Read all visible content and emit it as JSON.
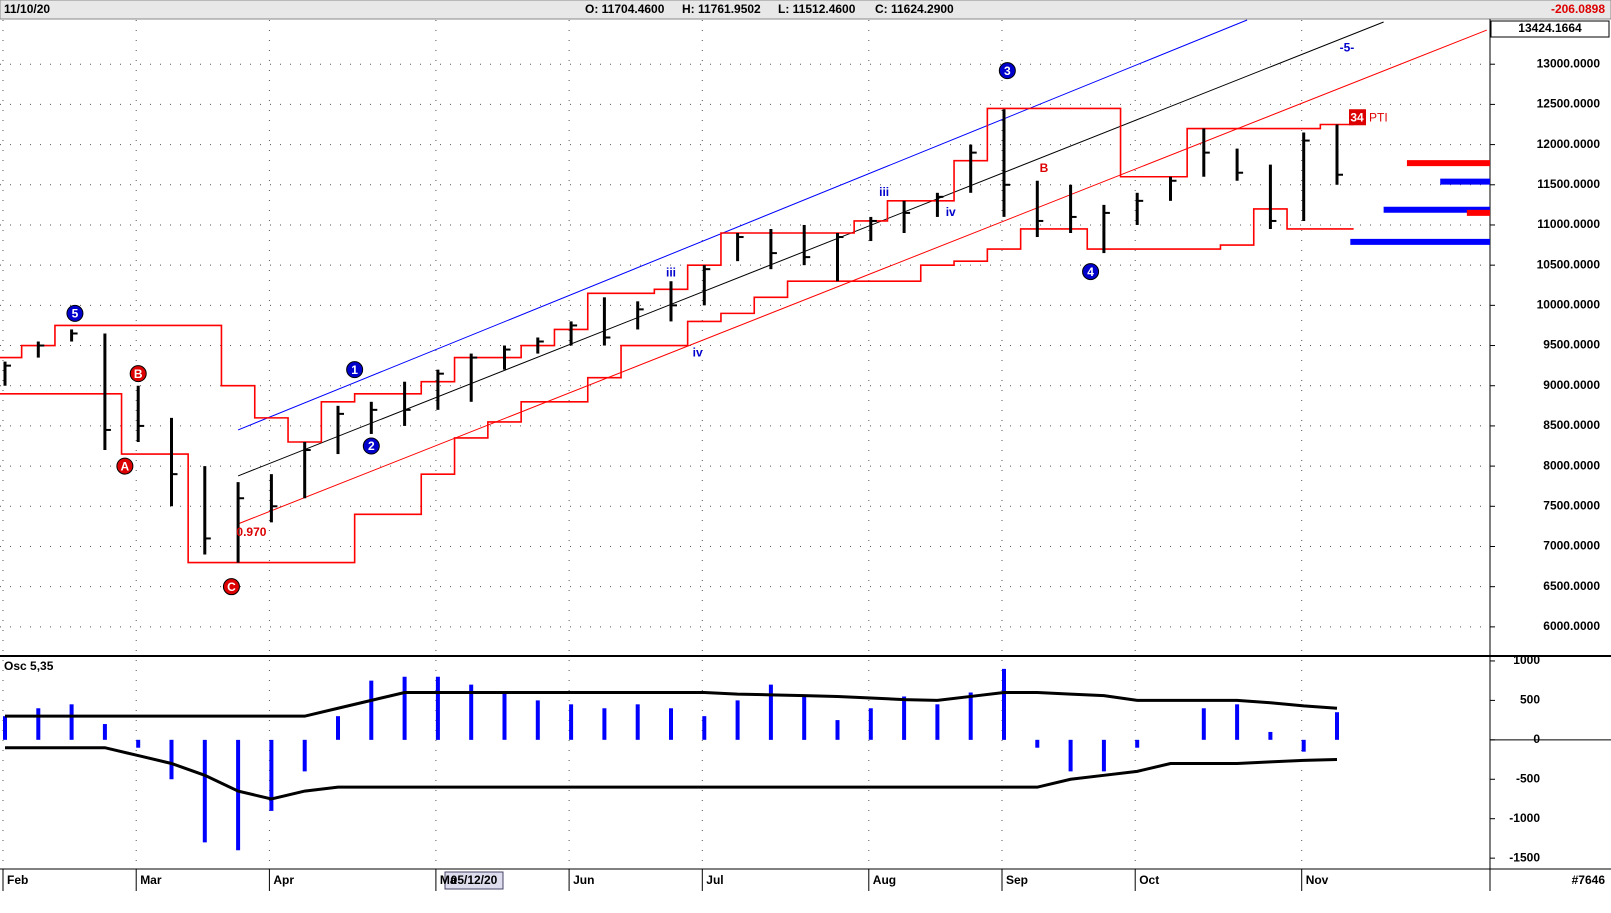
{
  "chart_data": {
    "type": "ohlc",
    "header": {
      "date": "11/10/20",
      "open": "O: 11704.4600",
      "high": "H: 11761.9502",
      "low": "L: 11512.4600",
      "close": "C: 11624.2900",
      "change": "-206.0898"
    },
    "top_label": "13424.1664",
    "cursor_label": "05/12/20",
    "footer_label": "#7646",
    "categories": [
      "Feb",
      null,
      null,
      null,
      "Mar",
      null,
      null,
      null,
      "Apr",
      null,
      null,
      null,
      null,
      "Ma",
      null,
      null,
      null,
      "Jun",
      null,
      null,
      null,
      "Jul",
      null,
      null,
      null,
      null,
      "Aug",
      null,
      null,
      null,
      "Sep",
      null,
      null,
      null,
      "Oct",
      null,
      null,
      null,
      null,
      "Nov",
      null
    ],
    "color": "#000000",
    "high": [
      9300,
      9550,
      9700,
      9650,
      9000,
      8600,
      8000,
      7800,
      7900,
      8300,
      8750,
      8800,
      9050,
      9200,
      9400,
      9500,
      9600,
      9800,
      10100,
      10050,
      10300,
      10500,
      10900,
      10950,
      11000,
      10900,
      11100,
      11300,
      11400,
      12000,
      12440,
      11550,
      11500,
      11250,
      11400,
      11600,
      12200,
      11950,
      11750,
      12150,
      12250
    ],
    "low": [
      9000,
      9350,
      9550,
      8200,
      8300,
      7500,
      6900,
      6800,
      7300,
      7600,
      8150,
      8400,
      8500,
      8700,
      8800,
      9200,
      9400,
      9500,
      9500,
      9700,
      9800,
      10000,
      10550,
      10450,
      10500,
      10300,
      10800,
      10900,
      11100,
      11400,
      11100,
      10850,
      10900,
      10650,
      11000,
      11300,
      11600,
      11550,
      10950,
      11050,
      11500
    ],
    "close": [
      9250,
      9500,
      9650,
      8450,
      8500,
      7900,
      7100,
      7600,
      7500,
      8200,
      8650,
      8700,
      8700,
      9150,
      9350,
      9450,
      9550,
      9750,
      9600,
      9950,
      10000,
      10450,
      10850,
      10650,
      10600,
      10850,
      11050,
      11150,
      11350,
      11900,
      11500,
      11050,
      11100,
      11150,
      11300,
      11550,
      11900,
      11650,
      11050,
      12050,
      11625
    ],
    "bands": {
      "color": "#ff0000",
      "upper": [
        9350,
        9500,
        9750,
        9750,
        9750,
        9750,
        9750,
        9000,
        8600,
        8300,
        8800,
        8900,
        8900,
        9050,
        9350,
        9350,
        9500,
        9700,
        10150,
        10150,
        10200,
        10500,
        10900,
        10900,
        10900,
        10900,
        11050,
        11300,
        11300,
        11800,
        12450,
        12450,
        12450,
        12450,
        11600,
        11600,
        12200,
        12200,
        12200,
        12200,
        12250
      ],
      "lower": [
        8900,
        8900,
        8900,
        8900,
        8150,
        8150,
        6800,
        6800,
        6800,
        6800,
        6800,
        7400,
        7400,
        7900,
        8350,
        8550,
        8800,
        8800,
        9100,
        9500,
        9500,
        9800,
        9900,
        10100,
        10300,
        10300,
        10300,
        10300,
        10500,
        10550,
        10700,
        10950,
        10950,
        10700,
        10700,
        10700,
        10700,
        10750,
        11200,
        10950,
        10950
      ]
    },
    "trendlines": [
      {
        "color": "#0000ff",
        "start": [
          7,
          8450
        ],
        "end": [
          37.3,
          13550
        ]
      },
      {
        "color": "#000000",
        "start": [
          7,
          7878
        ],
        "end": [
          41.4,
          13525
        ]
      },
      {
        "color": "#ff0000",
        "start": [
          7,
          7281
        ],
        "end": [
          44.5,
          13425
        ]
      }
    ],
    "projection_levels": [
      {
        "value": 11770,
        "color": "#ff0000",
        "start": 42.1
      },
      {
        "value": 11540,
        "color": "#0000ff",
        "start": 43.1
      },
      {
        "value": 11190,
        "color": "#0000ff",
        "start": 41.4
      },
      {
        "value": 11150,
        "color": "#ff0000",
        "start": 43.9
      },
      {
        "value": 10790,
        "color": "#0000ff",
        "start": 40.4
      }
    ],
    "annotations": [
      {
        "text": "5",
        "x": 2.1,
        "y": 9900,
        "color": "#0000cc",
        "circled": true
      },
      {
        "text": "B",
        "x": 4,
        "y": 9150,
        "color": "#dd0000",
        "circled": true
      },
      {
        "text": "A",
        "x": 3.6,
        "y": 8000,
        "color": "#dd0000",
        "circled": true
      },
      {
        "text": "C",
        "x": 6.8,
        "y": 6500,
        "color": "#dd0000",
        "circled": true
      },
      {
        "text": "1",
        "x": 10.5,
        "y": 9200,
        "color": "#0000cc",
        "circled": true
      },
      {
        "text": "2",
        "x": 11,
        "y": 8250,
        "color": "#0000cc",
        "circled": true
      },
      {
        "text": "3",
        "x": 30.1,
        "y": 12920,
        "color": "#0000cc",
        "circled": true
      },
      {
        "text": "4",
        "x": 32.6,
        "y": 10420,
        "color": "#0000cc",
        "circled": true
      },
      {
        "text": "0.970",
        "x": 7.4,
        "y": 7170,
        "color": "#dd0000",
        "circled": false
      },
      {
        "text": "iii",
        "x": 20,
        "y": 10400,
        "color": "#0000cc",
        "circled": false
      },
      {
        "text": "iv",
        "x": 20.8,
        "y": 9400,
        "color": "#0000cc",
        "circled": false
      },
      {
        "text": "iii",
        "x": 26.4,
        "y": 11400,
        "color": "#0000cc",
        "circled": false
      },
      {
        "text": "iv",
        "x": 28.4,
        "y": 11150,
        "color": "#0000cc",
        "circled": false
      },
      {
        "text": "B",
        "x": 31.2,
        "y": 11700,
        "color": "#dd0000",
        "circled": false
      },
      {
        "text": "-5-",
        "x": 40.3,
        "y": 13200,
        "color": "#0000cc",
        "circled": false
      }
    ],
    "pti_label": "34",
    "pti_text": "PTI",
    "pti_y": 12340,
    "ylim": [
      5650,
      13550
    ],
    "yticks": [
      {
        "value": 6000,
        "label": "6000.0000"
      },
      {
        "value": 6500,
        "label": "6500.0000"
      },
      {
        "value": 7000,
        "label": "7000.0000"
      },
      {
        "value": 7500,
        "label": "7500.0000"
      },
      {
        "value": 8000,
        "label": "8000.0000"
      },
      {
        "value": 8500,
        "label": "8500.0000"
      },
      {
        "value": 9000,
        "label": "9000.0000"
      },
      {
        "value": 9500,
        "label": "9500.0000"
      },
      {
        "value": 10000,
        "label": "10000.0000"
      },
      {
        "value": 10500,
        "label": "10500.0000"
      },
      {
        "value": 11000,
        "label": "11000.0000"
      },
      {
        "value": 11500,
        "label": "11500.0000"
      },
      {
        "value": 12000,
        "label": "12000.0000"
      },
      {
        "value": 12500,
        "label": "12500.0000"
      },
      {
        "value": 13000,
        "label": "13000.0000"
      }
    ],
    "grid": true,
    "oscillator": {
      "label": "Osc 5,35",
      "color": "#0000ff",
      "values": [
        300,
        400,
        450,
        200,
        -100,
        -500,
        -1300,
        -1400,
        -900,
        -400,
        300,
        750,
        800,
        800,
        700,
        600,
        500,
        450,
        400,
        450,
        400,
        300,
        500,
        700,
        550,
        250,
        400,
        550,
        450,
        600,
        900,
        -100,
        -400,
        -400,
        -100,
        0,
        400,
        450,
        100,
        -150,
        350
      ],
      "upper": [
        300,
        300,
        300,
        300,
        300,
        300,
        300,
        300,
        300,
        300,
        400,
        500,
        600,
        600,
        600,
        600,
        600,
        600,
        600,
        600,
        600,
        600,
        580,
        570,
        560,
        550,
        530,
        510,
        500,
        550,
        600,
        600,
        580,
        560,
        500,
        500,
        500,
        500,
        470,
        430,
        400
      ],
      "lower": [
        -100,
        -100,
        -100,
        -100,
        -200,
        -300,
        -450,
        -650,
        -750,
        -650,
        -600,
        -600,
        -600,
        -600,
        -600,
        -600,
        -600,
        -600,
        -600,
        -600,
        -600,
        -600,
        -600,
        -600,
        -600,
        -600,
        -600,
        -600,
        -600,
        -600,
        -600,
        -600,
        -500,
        -450,
        -400,
        -300,
        -300,
        -300,
        -280,
        -260,
        -250
      ],
      "ylim": [
        -1625,
        1050
      ],
      "yticks": [
        1000,
        500,
        0,
        -500,
        -1000,
        -1500
      ]
    }
  }
}
